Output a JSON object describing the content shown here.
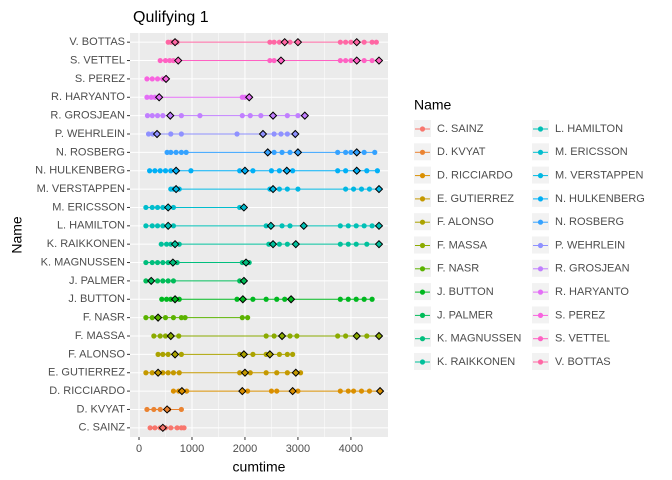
{
  "chart_data": {
    "type": "dotline",
    "title": "Qulifying 1",
    "x_label": "cumtime",
    "y_label": "Name",
    "legend_title": "Name",
    "xlim": [
      -170,
      4700
    ],
    "xticks": [
      0,
      1000,
      2000,
      3000,
      4000
    ],
    "grid": true,
    "series": [
      {
        "name": "C. SAINZ",
        "color": "#F8766D",
        "values": [
          210,
          300,
          400,
          450,
          500,
          600,
          720,
          800,
          850
        ],
        "marked": [
          450
        ]
      },
      {
        "name": "D. KVYAT",
        "color": "#EA8331",
        "values": [
          150,
          280,
          400,
          530,
          560,
          800
        ],
        "marked": [
          530
        ]
      },
      {
        "name": "D. RICCIARDO",
        "color": "#DA8F00",
        "values": [
          650,
          750,
          810,
          900,
          1950,
          2050,
          2500,
          2600,
          2900,
          3000,
          3800,
          3950,
          4050,
          4200,
          4350,
          4550
        ],
        "marked": [
          810,
          1950,
          2900,
          4550
        ]
      },
      {
        "name": "E. GUTIERREZ",
        "color": "#C59900",
        "values": [
          130,
          250,
          360,
          450,
          550,
          650,
          760,
          1900,
          2000,
          2100,
          2400,
          2600,
          2800,
          2960,
          3050
        ],
        "marked": [
          360,
          2000,
          2960
        ]
      },
      {
        "name": "F. ALONSO",
        "color": "#ABA300",
        "values": [
          360,
          450,
          550,
          680,
          800,
          1900,
          1980,
          2150,
          2400,
          2470,
          2650,
          2800,
          2900
        ],
        "marked": [
          680,
          1980,
          2470
        ]
      },
      {
        "name": "F. MASSA",
        "color": "#8BAB00",
        "values": [
          280,
          400,
          500,
          600,
          750,
          2400,
          2550,
          2700,
          2850,
          2980,
          3750,
          3900,
          4110,
          4300,
          4530
        ],
        "marked": [
          600,
          2700,
          4110,
          4530
        ]
      },
      {
        "name": "F. NASR",
        "color": "#5BB300",
        "values": [
          130,
          250,
          360,
          500,
          650,
          800,
          870,
          1950,
          2050
        ],
        "marked": [
          360
        ]
      },
      {
        "name": "J. BUTTON",
        "color": "#00B81F",
        "values": [
          430,
          520,
          600,
          680,
          760,
          1850,
          1960,
          2150,
          2400,
          2600,
          2750,
          2870,
          3800,
          3950,
          4100,
          4250,
          4400
        ],
        "marked": [
          680,
          1960,
          2870
        ]
      },
      {
        "name": "J. PALMER",
        "color": "#00BC59",
        "values": [
          130,
          230,
          350,
          450,
          550,
          650,
          1900,
          1980
        ],
        "marked": [
          230,
          1980
        ]
      },
      {
        "name": "K. MAGNUSSEN",
        "color": "#00BE7D",
        "values": [
          130,
          250,
          350,
          450,
          550,
          640,
          720,
          1950,
          2020,
          2080
        ],
        "marked": [
          640,
          2020
        ]
      },
      {
        "name": "K. RAIKKONEN",
        "color": "#00C09B",
        "values": [
          420,
          520,
          600,
          680,
          760,
          2450,
          2530,
          2650,
          2800,
          2960,
          3800,
          3950,
          4100,
          4300,
          4530
        ],
        "marked": [
          680,
          2530,
          2960,
          4530
        ]
      },
      {
        "name": "L. HAMILTON",
        "color": "#00C0B6",
        "values": [
          130,
          250,
          350,
          450,
          550,
          650,
          2400,
          2490,
          2700,
          2850,
          3110,
          3800,
          3950,
          4100,
          4250,
          4400,
          4530
        ],
        "marked": [
          550,
          2490,
          3110,
          4530
        ]
      },
      {
        "name": "M. ERICSSON",
        "color": "#00BDCE",
        "values": [
          130,
          250,
          350,
          450,
          550,
          650,
          1900,
          1980
        ],
        "marked": [
          550,
          1980
        ]
      },
      {
        "name": "M. VERSTAPPEN",
        "color": "#00B8E3",
        "values": [
          600,
          650,
          700,
          760,
          2470,
          2530,
          2650,
          2800,
          3000,
          3900,
          4050,
          4200,
          4350,
          4530
        ],
        "marked": [
          700,
          2530,
          4530
        ]
      },
      {
        "name": "N. HULKENBERG",
        "color": "#00B0F6",
        "values": [
          200,
          300,
          400,
          500,
          600,
          700,
          980,
          1900,
          2000,
          2150,
          2500,
          2650,
          2790,
          2900,
          3750,
          3900,
          4110,
          4300,
          4500
        ],
        "marked": [
          700,
          2000,
          2790,
          4110
        ]
      },
      {
        "name": "N. ROSBERG",
        "color": "#35A2FF",
        "values": [
          530,
          600,
          700,
          800,
          890,
          2430,
          2550,
          2700,
          2850,
          3000,
          3750,
          3900,
          4000,
          4110,
          4250,
          4450
        ],
        "marked": [
          2430,
          3000,
          4110
        ]
      },
      {
        "name": "P. WEHRLEIN",
        "color": "#8F91FF",
        "values": [
          180,
          260,
          340,
          600,
          800,
          1850,
          2340,
          2550,
          2680,
          2800,
          2950
        ],
        "marked": [
          340,
          2340,
          2950
        ]
      },
      {
        "name": "R. GROSJEAN",
        "color": "#C17FFF",
        "values": [
          160,
          250,
          350,
          450,
          590,
          800,
          1150,
          1950,
          2100,
          2300,
          2530,
          2800,
          3000,
          3130
        ],
        "marked": [
          590,
          2530,
          3130
        ]
      },
      {
        "name": "R. HARYANTO",
        "color": "#E36EF6",
        "values": [
          150,
          230,
          300,
          380,
          1950,
          2000,
          2080
        ],
        "marked": [
          380,
          2080
        ]
      },
      {
        "name": "S. PEREZ",
        "color": "#F863DF",
        "values": [
          150,
          250,
          350,
          450,
          510
        ],
        "marked": [
          510
        ]
      },
      {
        "name": "S. VETTEL",
        "color": "#FF61C3",
        "values": [
          400,
          500,
          580,
          650,
          740,
          2470,
          2550,
          2680,
          3800,
          3900,
          4000,
          4110,
          4250,
          4400,
          4530
        ],
        "marked": [
          740,
          2680,
          4110,
          4530
        ]
      },
      {
        "name": "V. BOTTAS",
        "color": "#FF67A4",
        "values": [
          550,
          600,
          650,
          680,
          720,
          2470,
          2550,
          2650,
          2750,
          2850,
          3000,
          3800,
          3900,
          4000,
          4110,
          4250,
          4400,
          4480
        ],
        "marked": [
          680,
          2750,
          3000,
          4110
        ]
      }
    ]
  }
}
